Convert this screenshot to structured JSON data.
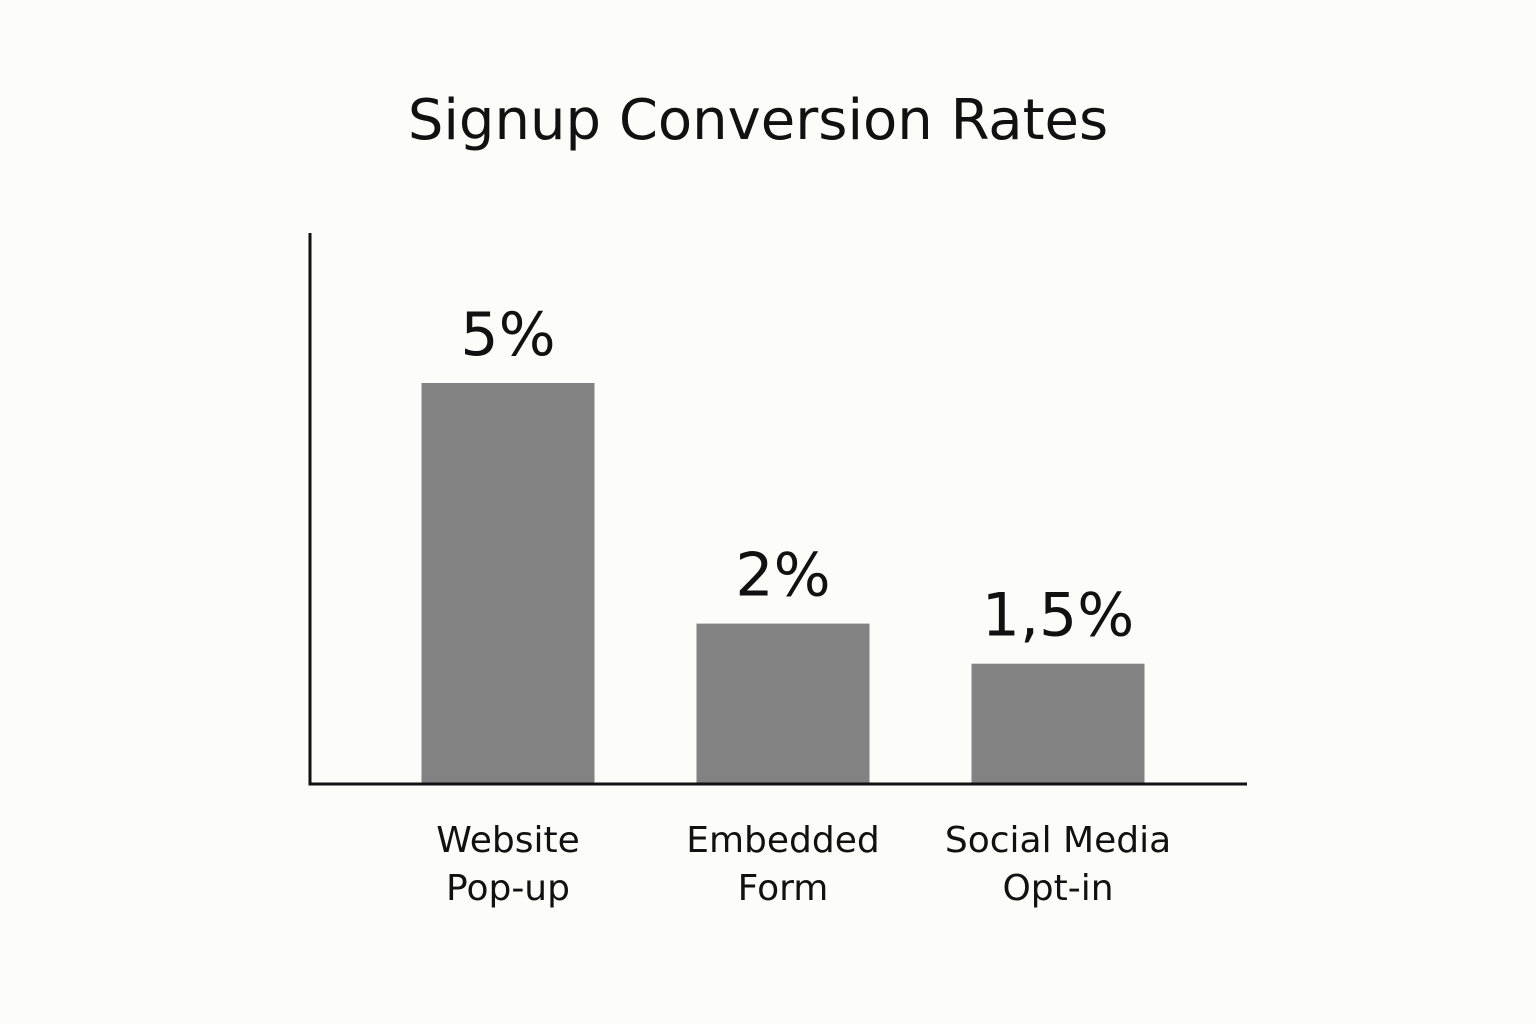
{
  "chart_data": {
    "type": "bar",
    "title": "Signup Conversion Rates",
    "xlabel": "",
    "ylabel": "",
    "categories": [
      [
        "Website",
        "Pop-up"
      ],
      [
        "Embedded",
        "Form"
      ],
      [
        "Social Media",
        "Opt-in"
      ]
    ],
    "values": [
      5,
      2,
      1.5
    ],
    "value_labels": [
      "5%",
      "2%",
      "1,5%"
    ],
    "ylim": [
      0,
      7
    ],
    "grid": false,
    "legend": "none",
    "colors": {
      "bar": "#828282",
      "axis": "#111111",
      "text": "#111111",
      "background": "#fcfcf9"
    }
  }
}
